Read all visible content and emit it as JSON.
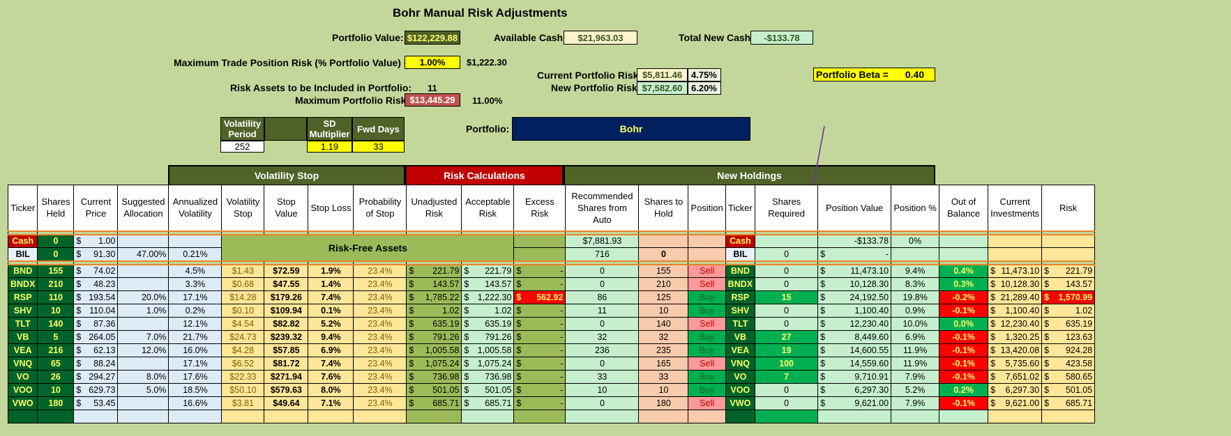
{
  "title": "Bohr Manual Risk Adjustments",
  "header": {
    "portfolio_value_label": "Portfolio Value:",
    "portfolio_value": "$122,229.88",
    "available_cash_label": "Available Cash:",
    "available_cash": "$21,963.03",
    "total_new_cash_label": "Total New Cash:",
    "total_new_cash": "-$133.78",
    "max_trade_risk_label": "Maximum Trade Position Risk (% Portfolio Value) - R:",
    "max_trade_risk_pct": "1.00%",
    "max_trade_risk_value": "$1,222.30",
    "current_risk_label": "Current Portfolio Risk:",
    "current_risk_value": "$5,811.46",
    "current_risk_pct": "4.75%",
    "new_risk_label": "New Portfolio Risk:",
    "new_risk_value": "$7,582.60",
    "new_risk_pct": "6.20%",
    "beta_label": "Portfolio Beta =",
    "beta_value": "0.40",
    "risk_assets_label": "Risk Assets to be Included in Portfolio:",
    "risk_assets_value": "11",
    "max_portfolio_risk_label": "Maximum Portfolio Risk:",
    "max_portfolio_risk_value": "$13,445.29",
    "max_portfolio_risk_pct": "11.00%",
    "portfolio_label": "Portfolio:",
    "portfolio_name": "Bohr"
  },
  "params": {
    "vol_period_label": "Volatility Period",
    "sd_mult_label": "SD Multiplier",
    "fwd_days_label": "Fwd Days",
    "vol_period": "252",
    "sd_mult": "1.19",
    "fwd_days": "33"
  },
  "sections": {
    "volatility_stop": "Volatility Stop",
    "risk_calc": "Risk Calculations",
    "new_holdings": "New Holdings",
    "risk_free": "Risk-Free Assets"
  },
  "columns": [
    "Ticker",
    "Shares Held",
    "Current Price",
    "Suggested Allocation",
    "Annualized Volatility",
    "Volatility Stop",
    "Stop Value",
    "Stop Loss",
    "Probability of Stop",
    "Unadjusted Risk",
    "Acceptable Risk",
    "Excess Risk",
    "Recommended Shares from Auto",
    "Shares to Hold",
    "Position",
    "Ticker",
    "Shares Required",
    "Position Value",
    "Position %",
    "Out of Balance",
    "Current Investments",
    "Risk"
  ],
  "risk_free_rows": [
    {
      "ticker": "Cash",
      "held": "0",
      "price": "1.00",
      "alloc": "",
      "vol": "",
      "rec": "$7,881.93",
      "hold": "",
      "pos": "",
      "ticker2": "Cash",
      "req": "",
      "pval": "-$133.78",
      "ppct": "0%"
    },
    {
      "ticker": "BIL",
      "held": "0",
      "price": "91.30",
      "alloc": "47.00%",
      "vol": "0.21%",
      "rec": "716",
      "hold": "0",
      "pos": "",
      "ticker2": "BIL",
      "req": "0",
      "pval": "-",
      "ppct": ""
    }
  ],
  "rows": [
    {
      "ticker": "BND",
      "held": "155",
      "price": "74.02",
      "alloc": "",
      "vol": "4.5%",
      "vstop": "$1.43",
      "sval": "$72.59",
      "sloss": "1.9%",
      "prob": "23.4%",
      "unadj": "221.79",
      "acc": "221.79",
      "excess": "-",
      "rec": "0",
      "hold": "155",
      "pos": "Sell",
      "req": "0",
      "pval": "11,473.10",
      "ppct": "9.4%",
      "oob": "0.4%",
      "cur": "11,473.10",
      "risk": "221.79"
    },
    {
      "ticker": "BNDX",
      "held": "210",
      "price": "48.23",
      "alloc": "",
      "vol": "3.3%",
      "vstop": "$0.68",
      "sval": "$47.55",
      "sloss": "1.4%",
      "prob": "23.4%",
      "unadj": "143.57",
      "acc": "143.57",
      "excess": "-",
      "rec": "0",
      "hold": "210",
      "pos": "Sell",
      "req": "0",
      "pval": "10,128.30",
      "ppct": "8.3%",
      "oob": "0.3%",
      "cur": "10,128.30",
      "risk": "143.57"
    },
    {
      "ticker": "RSP",
      "held": "110",
      "price": "193.54",
      "alloc": "20.0%",
      "vol": "17.1%",
      "vstop": "$14.28",
      "sval": "$179.26",
      "sloss": "7.4%",
      "prob": "23.4%",
      "unadj": "1,785.22",
      "acc": "1,222.30",
      "excess": "562.92",
      "rec": "86",
      "hold": "125",
      "pos": "Buy",
      "req": "15",
      "pval": "24,192.50",
      "ppct": "19.8%",
      "oob": "-0.2%",
      "cur": "21,289.40",
      "risk": "1,570.99"
    },
    {
      "ticker": "SHV",
      "held": "10",
      "price": "110.04",
      "alloc": "1.0%",
      "vol": "0.2%",
      "vstop": "$0.10",
      "sval": "$109.94",
      "sloss": "0.1%",
      "prob": "23.4%",
      "unadj": "1.02",
      "acc": "1.02",
      "excess": "-",
      "rec": "11",
      "hold": "10",
      "pos": "Buy",
      "req": "0",
      "pval": "1,100.40",
      "ppct": "0.9%",
      "oob": "-0.1%",
      "cur": "1,100.40",
      "risk": "1.02"
    },
    {
      "ticker": "TLT",
      "held": "140",
      "price": "87.36",
      "alloc": "",
      "vol": "12.1%",
      "vstop": "$4.54",
      "sval": "$82.82",
      "sloss": "5.2%",
      "prob": "23.4%",
      "unadj": "635.19",
      "acc": "635.19",
      "excess": "-",
      "rec": "0",
      "hold": "140",
      "pos": "Sell",
      "req": "0",
      "pval": "12,230.40",
      "ppct": "10.0%",
      "oob": "0.0%",
      "cur": "12,230.40",
      "risk": "635.19"
    },
    {
      "ticker": "VB",
      "held": "5",
      "price": "264.05",
      "alloc": "7.0%",
      "vol": "21.7%",
      "vstop": "$24.73",
      "sval": "$239.32",
      "sloss": "9.4%",
      "prob": "23.4%",
      "unadj": "791.26",
      "acc": "791.26",
      "excess": "-",
      "rec": "32",
      "hold": "32",
      "pos": "Buy",
      "req": "27",
      "pval": "8,449.60",
      "ppct": "6.9%",
      "oob": "-0.1%",
      "cur": "1,320.25",
      "risk": "123.63"
    },
    {
      "ticker": "VEA",
      "held": "216",
      "price": "62.13",
      "alloc": "12.0%",
      "vol": "16.0%",
      "vstop": "$4.28",
      "sval": "$57.85",
      "sloss": "6.9%",
      "prob": "23.4%",
      "unadj": "1,005.58",
      "acc": "1,005.58",
      "excess": "-",
      "rec": "236",
      "hold": "235",
      "pos": "Buy",
      "req": "19",
      "pval": "14,600.55",
      "ppct": "11.9%",
      "oob": "-0.1%",
      "cur": "13,420.08",
      "risk": "924.28"
    },
    {
      "ticker": "VNQ",
      "held": "65",
      "price": "88.24",
      "alloc": "",
      "vol": "17.1%",
      "vstop": "$6.52",
      "sval": "$81.72",
      "sloss": "7.4%",
      "prob": "23.4%",
      "unadj": "1,075.24",
      "acc": "1,075.24",
      "excess": "-",
      "rec": "0",
      "hold": "165",
      "pos": "Sell",
      "req": "100",
      "pval": "14,559.60",
      "ppct": "11.9%",
      "oob": "-0.1%",
      "cur": "5,735.60",
      "risk": "423.58"
    },
    {
      "ticker": "VO",
      "held": "26",
      "price": "294.27",
      "alloc": "8.0%",
      "vol": "17.6%",
      "vstop": "$22.33",
      "sval": "$271.94",
      "sloss": "7.6%",
      "prob": "23.4%",
      "unadj": "736.98",
      "acc": "736.98",
      "excess": "-",
      "rec": "33",
      "hold": "33",
      "pos": "Buy",
      "req": "7",
      "pval": "9,710.91",
      "ppct": "7.9%",
      "oob": "-0.1%",
      "cur": "7,651.02",
      "risk": "580.65"
    },
    {
      "ticker": "VOO",
      "held": "10",
      "price": "629.73",
      "alloc": "5.0%",
      "vol": "18.5%",
      "vstop": "$50.10",
      "sval": "$579.63",
      "sloss": "8.0%",
      "prob": "23.4%",
      "unadj": "501.05",
      "acc": "501.05",
      "excess": "-",
      "rec": "10",
      "hold": "10",
      "pos": "Buy",
      "req": "0",
      "pval": "6,297.30",
      "ppct": "5.2%",
      "oob": "0.2%",
      "cur": "6,297.30",
      "risk": "501.05"
    },
    {
      "ticker": "VWO",
      "held": "180",
      "price": "53.45",
      "alloc": "",
      "vol": "16.6%",
      "vstop": "$3.81",
      "sval": "$49.64",
      "sloss": "7.1%",
      "prob": "23.4%",
      "unadj": "685.71",
      "acc": "685.71",
      "excess": "-",
      "rec": "0",
      "hold": "180",
      "pos": "Sell",
      "req": "0",
      "pval": "9,621.00",
      "ppct": "7.9%",
      "oob": "-0.1%",
      "cur": "9,621.00",
      "risk": "685.71"
    }
  ],
  "colors": {
    "sheet_bg": "#c4d79b",
    "ticker_green": "#00642a",
    "ticker_text": "#ffff66",
    "risk_header": "#c00000",
    "portfolio_navy": "#002060"
  }
}
